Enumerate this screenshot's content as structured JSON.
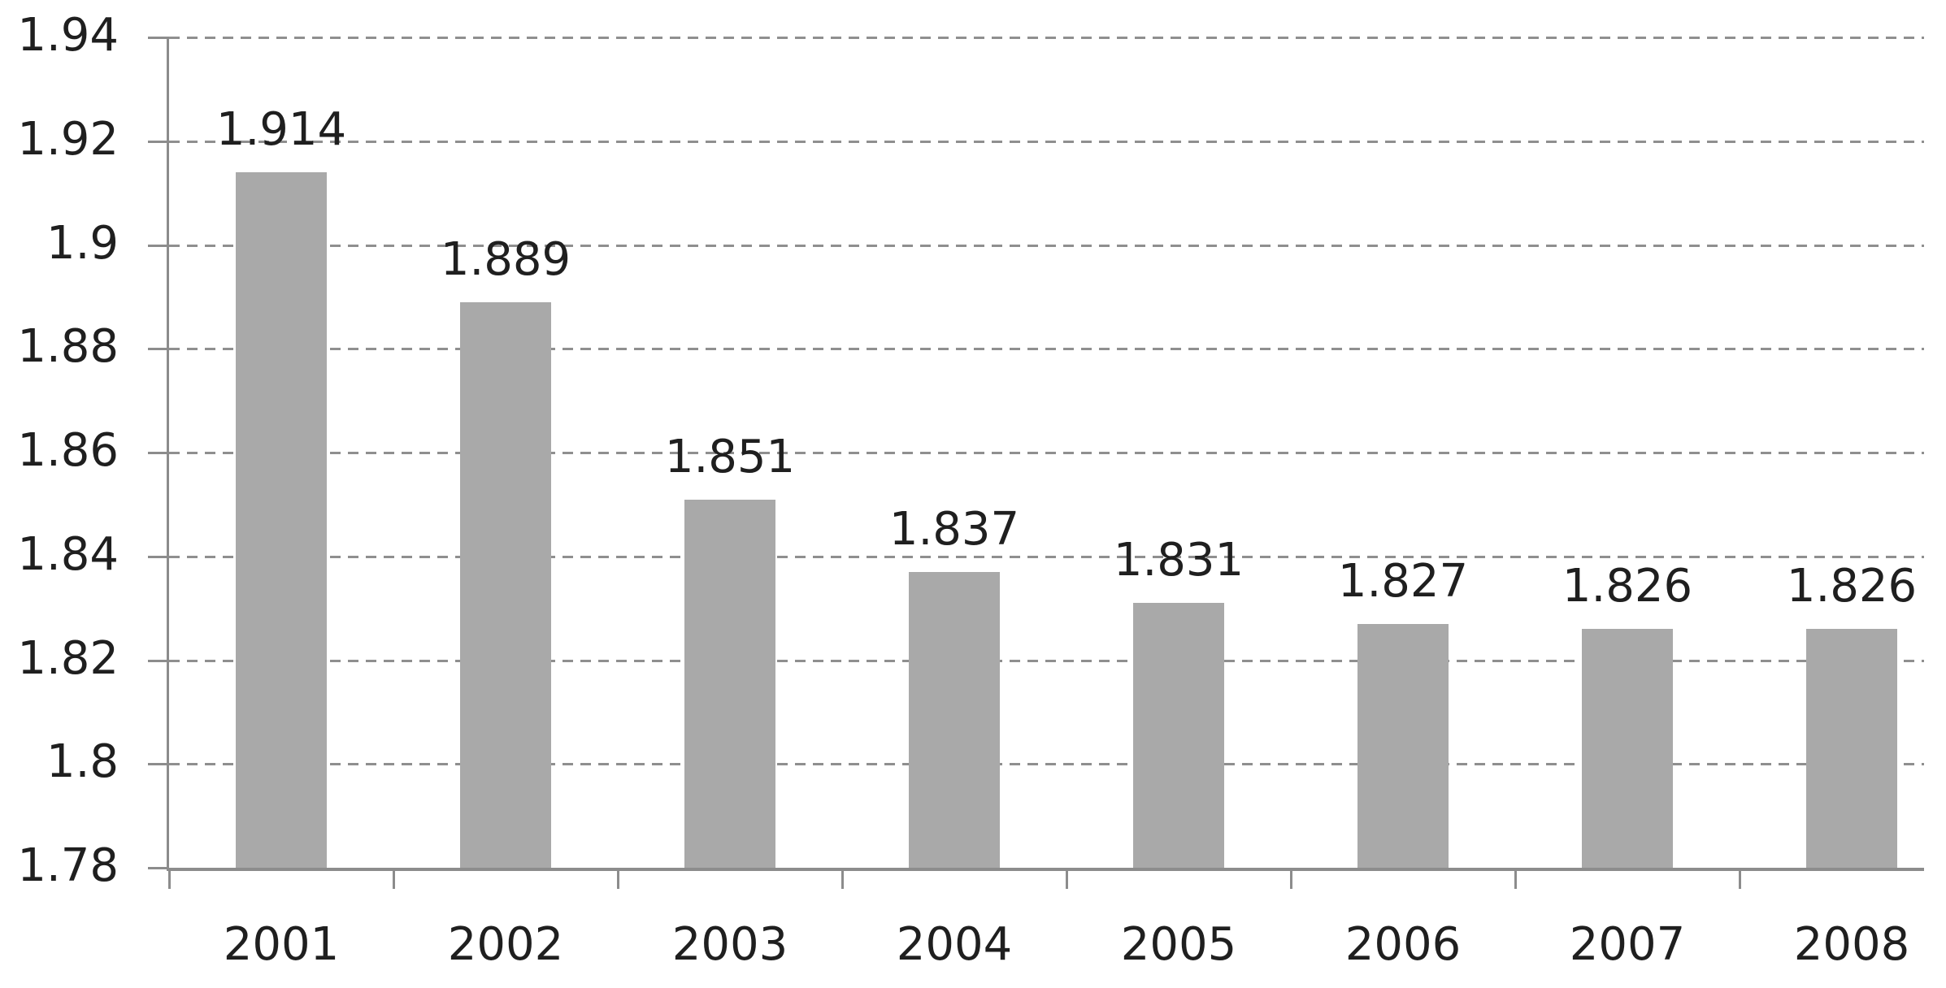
{
  "chart_data": {
    "type": "bar",
    "title": "",
    "xlabel": "",
    "ylabel": "",
    "categories": [
      "2001",
      "2002",
      "2003",
      "2004",
      "2005",
      "2006",
      "2007",
      "2008"
    ],
    "values": [
      1.914,
      1.889,
      1.851,
      1.837,
      1.831,
      1.827,
      1.826,
      1.826
    ],
    "value_labels": [
      "1.914",
      "1.889",
      "1.851",
      "1.837",
      "1.831",
      "1.827",
      "1.826",
      "1.826"
    ],
    "ylim": [
      1.78,
      1.94
    ],
    "ytick_values": [
      1.78,
      1.8,
      1.82,
      1.84,
      1.86,
      1.88,
      1.9,
      1.92,
      1.94
    ],
    "ytick_labels": [
      "1.78",
      "1.8",
      "1.82",
      "1.84",
      "1.86",
      "1.88",
      "1.9",
      "1.92",
      "1.94"
    ],
    "grid": "horizontal-dashed",
    "legend": "none",
    "colors": {
      "bar": "#a9a9a9",
      "gridline": "#8f8f8f",
      "axis": "#8c8c8c",
      "text": "#1f1f1f",
      "background": "#ffffff"
    }
  }
}
